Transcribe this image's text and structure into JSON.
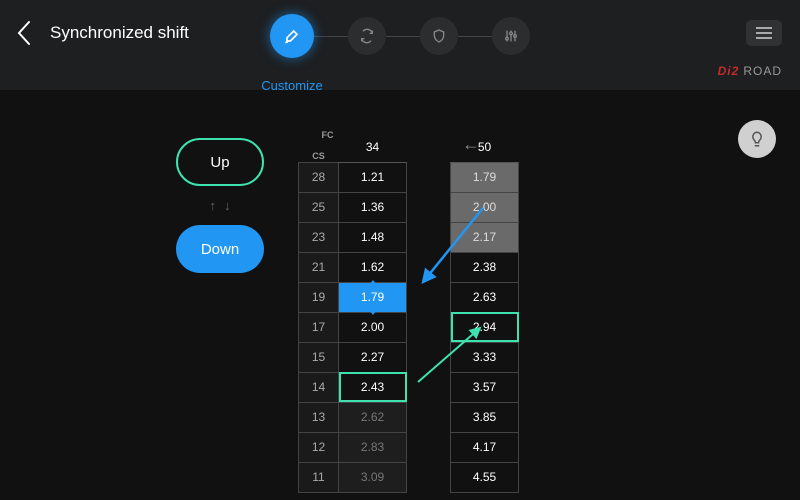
{
  "header": {
    "title": "Synchronized shift",
    "nav_label": "Customize",
    "brand_left": "Di2",
    "brand_right": "ROAD"
  },
  "controls": {
    "up_label": "Up",
    "down_label": "Down",
    "arrow_up": "↑",
    "arrow_down": "↓"
  },
  "table": {
    "fc_label": "FC",
    "cs_label": "CS",
    "back_arrow": "←",
    "fc_cols": [
      "34",
      "50"
    ],
    "cs": [
      "28",
      "25",
      "23",
      "21",
      "19",
      "17",
      "15",
      "14",
      "13",
      "12",
      "11"
    ],
    "col1": [
      "1.21",
      "1.36",
      "1.48",
      "1.62",
      "1.79",
      "2.00",
      "2.27",
      "2.43",
      "2.62",
      "2.83",
      "3.09"
    ],
    "col2": [
      "1.79",
      "2.00",
      "2.17",
      "2.38",
      "2.63",
      "2.94",
      "3.33",
      "3.57",
      "3.85",
      "4.17",
      "4.55"
    ],
    "col1_dim": [
      false,
      false,
      false,
      false,
      false,
      false,
      false,
      false,
      true,
      true,
      true
    ],
    "col2_gray": [
      true,
      true,
      true,
      false,
      false,
      false,
      false,
      false,
      false,
      false,
      false
    ],
    "col1_hl_blue_row": 4,
    "col1_green_box_row": 7,
    "col2_green_box_row": 5,
    "col2_hl_blue_row": 2,
    "blue_tri_up_after_row": 3,
    "blue_tri_down_after_row": 4
  },
  "colors": {
    "accent_blue": "#2196f3",
    "accent_green": "#3de2af",
    "brand_red": "#c82a2a",
    "bg": "#111111"
  }
}
